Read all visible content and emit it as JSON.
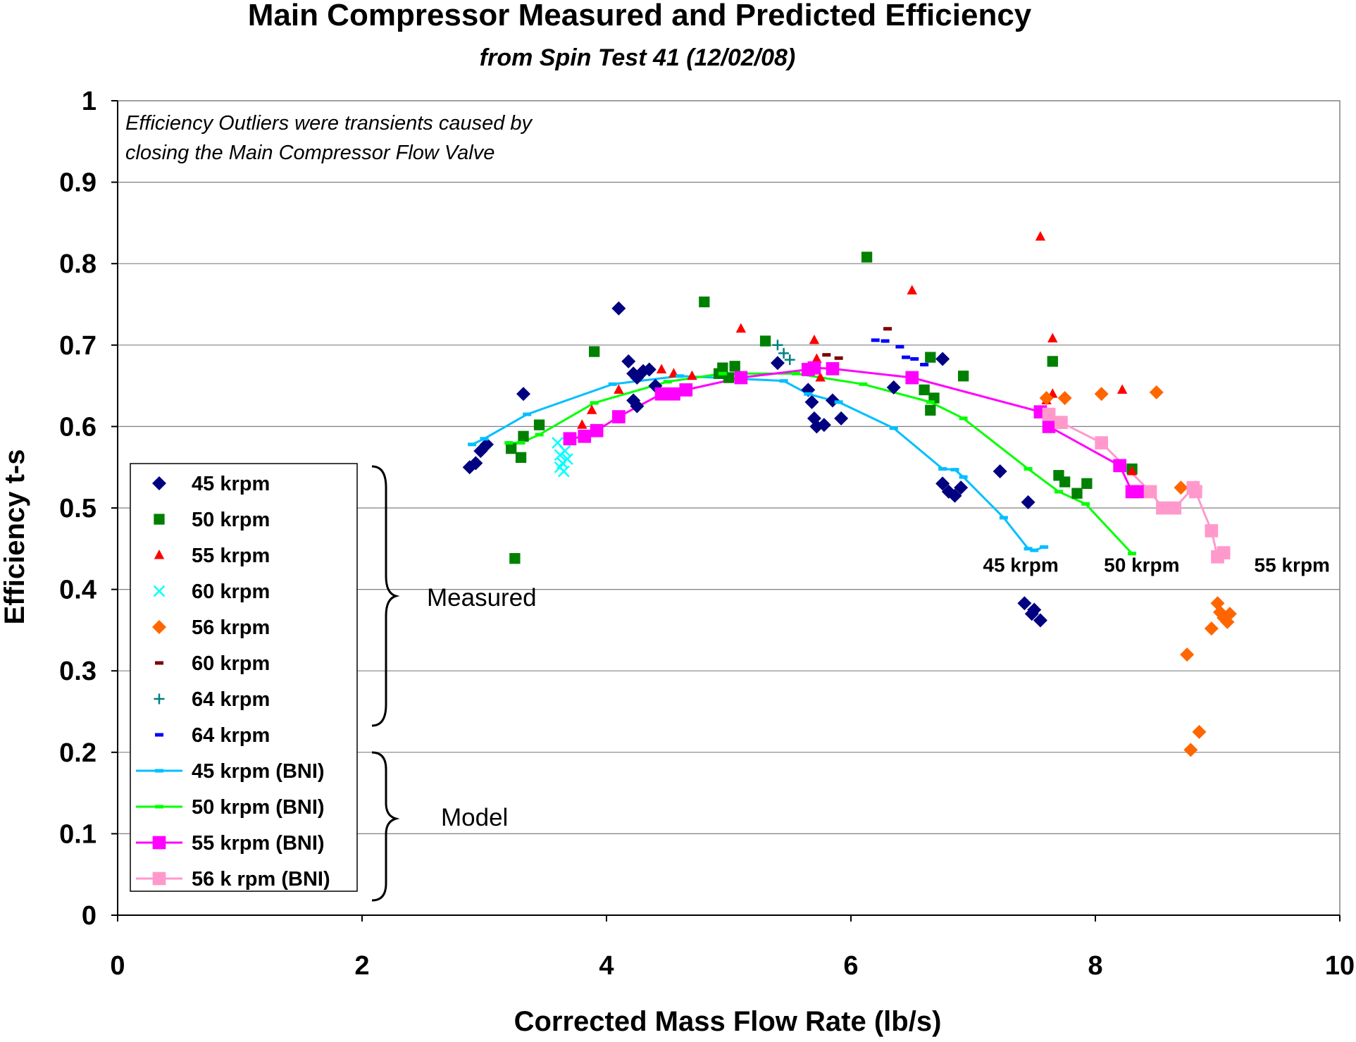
{
  "chart_data": {
    "type": "scatter",
    "title": "Main Compressor Measured and Predicted Efficiency",
    "subtitle": "from Spin Test 41 (12/02/08)",
    "xlabel": "Corrected Mass Flow Rate (lb/s)",
    "ylabel": "Efficiency   t-s",
    "xlim": [
      0,
      10
    ],
    "ylim": [
      0,
      1
    ],
    "x_ticks": [
      "0",
      "2",
      "4",
      "6",
      "8",
      "10"
    ],
    "y_ticks": [
      "0",
      "0.1",
      "0.2",
      "0.3",
      "0.4",
      "0.5",
      "0.6",
      "0.7",
      "0.8",
      "0.9",
      "1"
    ],
    "grid": "horizontal",
    "annotation": [
      "Efficiency Outliers were transients caused by",
      "closing the Main Compressor Flow Valve"
    ],
    "curve_labels": [
      {
        "text": "45 krpm",
        "x": 7.08,
        "y": 0.42
      },
      {
        "text": "50  krpm",
        "x": 8.07,
        "y": 0.42
      },
      {
        "text": "55 krpm",
        "x": 9.3,
        "y": 0.42
      }
    ],
    "group_labels": {
      "measured": "Measured",
      "model": "Model"
    },
    "legend_position": "left-lower",
    "series": [
      {
        "name": "45 krpm",
        "marker": "diamond",
        "color": "#000080",
        "kind": "measured",
        "points": [
          [
            2.88,
            0.55
          ],
          [
            2.93,
            0.555
          ],
          [
            2.97,
            0.57
          ],
          [
            3.02,
            0.578
          ],
          [
            3.32,
            0.64
          ],
          [
            4.1,
            0.745
          ],
          [
            4.18,
            0.68
          ],
          [
            4.22,
            0.665
          ],
          [
            4.25,
            0.66
          ],
          [
            4.3,
            0.668
          ],
          [
            4.35,
            0.67
          ],
          [
            4.4,
            0.65
          ],
          [
            4.22,
            0.632
          ],
          [
            4.25,
            0.625
          ],
          [
            5.4,
            0.678
          ],
          [
            5.65,
            0.645
          ],
          [
            5.68,
            0.63
          ],
          [
            5.7,
            0.61
          ],
          [
            5.72,
            0.6
          ],
          [
            5.78,
            0.602
          ],
          [
            5.85,
            0.632
          ],
          [
            5.92,
            0.61
          ],
          [
            6.35,
            0.648
          ],
          [
            6.75,
            0.683
          ],
          [
            6.75,
            0.53
          ],
          [
            6.8,
            0.52
          ],
          [
            6.85,
            0.515
          ],
          [
            6.9,
            0.525
          ],
          [
            7.22,
            0.545
          ],
          [
            7.45,
            0.507
          ],
          [
            7.42,
            0.383
          ],
          [
            7.48,
            0.37
          ],
          [
            7.5,
            0.375
          ],
          [
            7.55,
            0.362
          ]
        ]
      },
      {
        "name": "50 krpm",
        "marker": "square",
        "color": "#008000",
        "kind": "measured",
        "points": [
          [
            3.25,
            0.438
          ],
          [
            3.22,
            0.573
          ],
          [
            3.3,
            0.562
          ],
          [
            3.32,
            0.588
          ],
          [
            3.45,
            0.602
          ],
          [
            3.9,
            0.692
          ],
          [
            4.8,
            0.753
          ],
          [
            4.92,
            0.665
          ],
          [
            4.95,
            0.672
          ],
          [
            5.0,
            0.66
          ],
          [
            5.05,
            0.674
          ],
          [
            5.3,
            0.705
          ],
          [
            6.13,
            0.808
          ],
          [
            6.6,
            0.645
          ],
          [
            6.65,
            0.685
          ],
          [
            6.65,
            0.62
          ],
          [
            6.68,
            0.635
          ],
          [
            6.92,
            0.662
          ],
          [
            7.65,
            0.68
          ],
          [
            7.7,
            0.54
          ],
          [
            7.75,
            0.532
          ],
          [
            7.85,
            0.518
          ],
          [
            7.93,
            0.53
          ],
          [
            8.3,
            0.548
          ]
        ]
      },
      {
        "name": "55 krpm",
        "marker": "triangle",
        "color": "#ff0000",
        "kind": "measured",
        "points": [
          [
            3.8,
            0.602
          ],
          [
            3.88,
            0.62
          ],
          [
            4.1,
            0.645
          ],
          [
            4.45,
            0.67
          ],
          [
            4.55,
            0.665
          ],
          [
            4.7,
            0.662
          ],
          [
            5.1,
            0.72
          ],
          [
            5.7,
            0.706
          ],
          [
            5.72,
            0.683
          ],
          [
            5.75,
            0.66
          ],
          [
            6.5,
            0.767
          ],
          [
            7.55,
            0.833
          ],
          [
            7.65,
            0.708
          ],
          [
            7.65,
            0.64
          ],
          [
            7.6,
            0.632
          ],
          [
            8.22,
            0.645
          ],
          [
            8.3,
            0.545
          ]
        ]
      },
      {
        "name": "60 krpm",
        "marker": "x",
        "color": "#00ffff",
        "kind": "measured",
        "points": [
          [
            3.6,
            0.58
          ],
          [
            3.62,
            0.565
          ],
          [
            3.64,
            0.555
          ],
          [
            3.66,
            0.57
          ],
          [
            3.65,
            0.545
          ],
          [
            3.68,
            0.56
          ],
          [
            3.62,
            0.55
          ]
        ]
      },
      {
        "name": "56 krpm",
        "marker": "diamond",
        "color": "#ff6600",
        "kind": "measured",
        "points": [
          [
            7.6,
            0.635
          ],
          [
            7.75,
            0.635
          ],
          [
            8.05,
            0.64
          ],
          [
            8.5,
            0.642
          ],
          [
            8.7,
            0.525
          ],
          [
            8.82,
            0.525
          ],
          [
            8.75,
            0.32
          ],
          [
            8.85,
            0.225
          ],
          [
            8.78,
            0.203
          ],
          [
            8.95,
            0.352
          ],
          [
            9.0,
            0.383
          ],
          [
            9.02,
            0.372
          ],
          [
            9.05,
            0.365
          ],
          [
            9.08,
            0.36
          ],
          [
            9.1,
            0.37
          ]
        ]
      },
      {
        "name": "60 krpm",
        "marker": "dash",
        "color": "#800000",
        "kind": "measured",
        "points": [
          [
            5.8,
            0.688
          ],
          [
            5.9,
            0.684
          ],
          [
            6.3,
            0.72
          ]
        ]
      },
      {
        "name": "64 krpm",
        "marker": "plus",
        "color": "#008080",
        "kind": "measured",
        "points": [
          [
            5.4,
            0.7
          ],
          [
            5.45,
            0.69
          ],
          [
            5.5,
            0.682
          ]
        ]
      },
      {
        "name": "64 krpm",
        "marker": "dash",
        "color": "#0000ff",
        "kind": "measured",
        "points": [
          [
            6.2,
            0.706
          ],
          [
            6.28,
            0.705
          ],
          [
            6.4,
            0.698
          ],
          [
            6.45,
            0.685
          ],
          [
            6.52,
            0.683
          ],
          [
            6.6,
            0.676
          ]
        ]
      },
      {
        "name": "45 krpm (BNI)",
        "marker": "dash",
        "color": "#00bfff",
        "kind": "model",
        "points": [
          [
            2.9,
            0.578
          ],
          [
            3.0,
            0.585
          ],
          [
            3.35,
            0.615
          ],
          [
            4.05,
            0.652
          ],
          [
            4.6,
            0.662
          ],
          [
            5.45,
            0.656
          ],
          [
            5.65,
            0.64
          ],
          [
            5.9,
            0.63
          ],
          [
            6.35,
            0.598
          ],
          [
            6.75,
            0.548
          ],
          [
            6.85,
            0.547
          ],
          [
            6.92,
            0.538
          ],
          [
            7.25,
            0.488
          ],
          [
            7.45,
            0.45
          ],
          [
            7.5,
            0.448
          ],
          [
            7.58,
            0.452
          ]
        ]
      },
      {
        "name": "50 krpm (BNI)",
        "marker": "dash",
        "color": "#00ff00",
        "kind": "model",
        "points": [
          [
            3.2,
            0.58
          ],
          [
            3.3,
            0.58
          ],
          [
            3.45,
            0.59
          ],
          [
            3.9,
            0.629
          ],
          [
            4.5,
            0.655
          ],
          [
            4.95,
            0.665
          ],
          [
            5.1,
            0.665
          ],
          [
            5.55,
            0.665
          ],
          [
            6.1,
            0.652
          ],
          [
            6.65,
            0.63
          ],
          [
            6.92,
            0.61
          ],
          [
            7.45,
            0.548
          ],
          [
            7.7,
            0.52
          ],
          [
            7.92,
            0.505
          ],
          [
            8.3,
            0.444
          ]
        ]
      },
      {
        "name": "55 krpm (BNI)",
        "marker": "square",
        "color": "#ff00ff",
        "kind": "model",
        "points": [
          [
            3.7,
            0.585
          ],
          [
            3.82,
            0.588
          ],
          [
            3.92,
            0.595
          ],
          [
            4.1,
            0.612
          ],
          [
            4.45,
            0.64
          ],
          [
            4.55,
            0.64
          ],
          [
            4.65,
            0.645
          ],
          [
            5.1,
            0.66
          ],
          [
            5.65,
            0.67
          ],
          [
            5.7,
            0.672
          ],
          [
            5.85,
            0.671
          ],
          [
            6.5,
            0.66
          ],
          [
            7.55,
            0.618
          ],
          [
            7.62,
            0.6
          ],
          [
            8.2,
            0.552
          ],
          [
            8.3,
            0.52
          ],
          [
            8.35,
            0.52
          ]
        ]
      },
      {
        "name": "56 k rpm (BNI)",
        "marker": "square",
        "color": "#ff99cc",
        "kind": "model",
        "points": [
          [
            7.62,
            0.615
          ],
          [
            7.72,
            0.605
          ],
          [
            8.05,
            0.58
          ],
          [
            8.45,
            0.52
          ],
          [
            8.55,
            0.5
          ],
          [
            8.65,
            0.5
          ],
          [
            8.8,
            0.525
          ],
          [
            8.82,
            0.52
          ],
          [
            8.95,
            0.472
          ],
          [
            9.0,
            0.44
          ],
          [
            9.05,
            0.445
          ]
        ]
      }
    ]
  }
}
